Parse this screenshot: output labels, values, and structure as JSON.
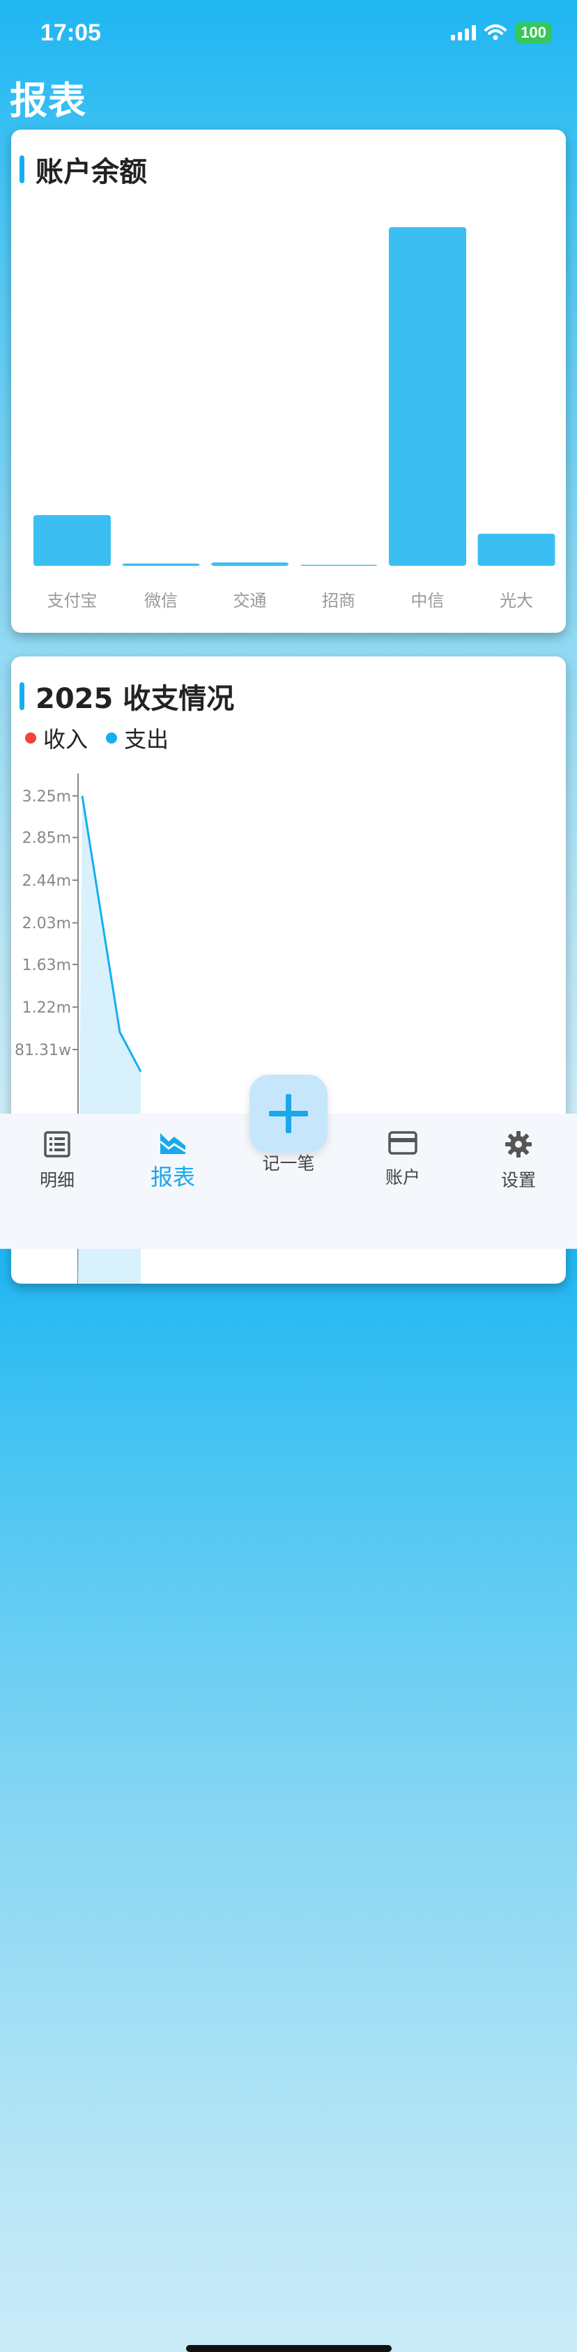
{
  "status_bar": {
    "time": "17:05",
    "battery": "100"
  },
  "page_title": "报表",
  "balance_card": {
    "title": "账户余额",
    "chart_data": {
      "type": "bar",
      "categories": [
        "支付宝",
        "微信",
        "交通",
        "招商",
        "中信",
        "光大"
      ],
      "values": [
        0.15,
        0.007,
        0.01,
        0.003,
        1.0,
        0.095
      ],
      "colors": {
        "bar": "#3bbff2"
      }
    }
  },
  "trend_card": {
    "title": "2025 收支情况",
    "chart_data": {
      "type": "area",
      "series": [
        {
          "name": "收入",
          "color": "#f2443a",
          "values": []
        },
        {
          "name": "支出",
          "color": "#16aef0",
          "values": [
            3.25,
            0.98,
            0.6
          ]
        }
      ],
      "y_tick_labels": [
        "3.25m",
        "2.85m",
        "2.44m",
        "2.03m",
        "1.63m",
        "1.22m",
        "81.31w"
      ],
      "y_ticks_millions": [
        3.25,
        2.85,
        2.44,
        2.03,
        1.63,
        1.22,
        0.8131
      ]
    }
  },
  "tabs": [
    {
      "label": "明细",
      "icon": "list-icon"
    },
    {
      "label": "报表",
      "icon": "chart-icon"
    },
    {
      "label": "账户",
      "icon": "card-icon"
    },
    {
      "label": "设置",
      "icon": "gear-icon"
    }
  ],
  "fab": {
    "label": "记一笔",
    "icon": "plus-icon"
  },
  "colors": {
    "accent": "#16aef0",
    "bar": "#3bbff2",
    "income": "#f2443a",
    "expense": "#16aef0"
  }
}
